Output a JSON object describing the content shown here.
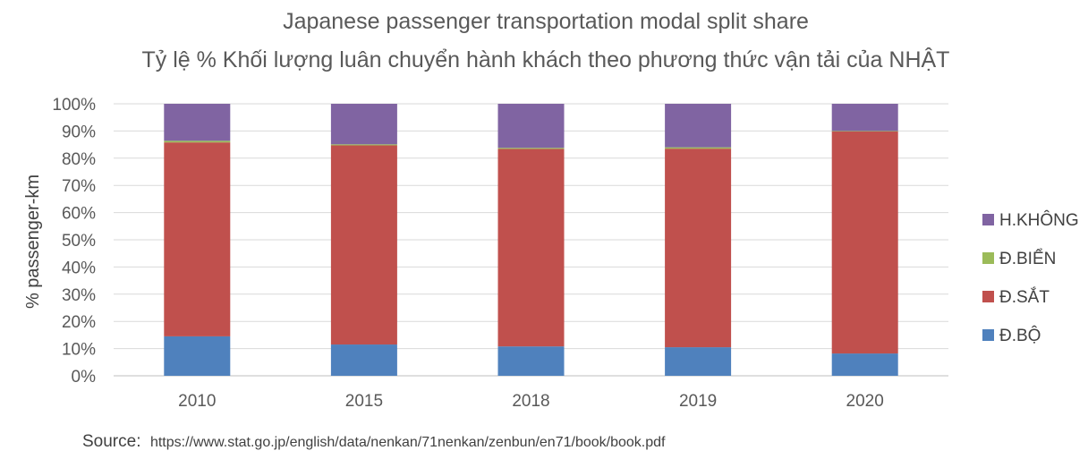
{
  "chart_data": {
    "type": "bar",
    "stacked": true,
    "title": "Japanese passenger transportation modal split share",
    "subtitle": "Tỷ lệ % Khối lượng luân chuyển hành khách theo phương thức vận tải của NHẬT",
    "xlabel": "",
    "ylabel": "% passenger-km",
    "ylim": [
      0,
      100
    ],
    "y_ticks": [
      "0%",
      "10%",
      "20%",
      "30%",
      "40%",
      "50%",
      "60%",
      "70%",
      "80%",
      "90%",
      "100%"
    ],
    "grid": true,
    "legend_position": "right",
    "categories": [
      "2010",
      "2015",
      "2018",
      "2019",
      "2020"
    ],
    "series": [
      {
        "name": "Đ.BỘ",
        "color": "#4F81BD",
        "values": [
          14.5,
          11.5,
          10.8,
          10.5,
          8.2
        ]
      },
      {
        "name": "Đ.SẮT",
        "color": "#C0504D",
        "values": [
          71.3,
          73.2,
          72.6,
          73.0,
          81.6
        ]
      },
      {
        "name": "Đ.BIỂN",
        "color": "#9BBB59",
        "values": [
          0.6,
          0.4,
          0.4,
          0.5,
          0.2
        ]
      },
      {
        "name": "H.KHÔNG",
        "color": "#8064A2",
        "values": [
          13.6,
          14.9,
          16.2,
          16.0,
          10.0
        ]
      }
    ],
    "legend_order": [
      "H.KHÔNG",
      "Đ.BIỂN",
      "Đ.SẮT",
      "Đ.BỘ"
    ]
  },
  "source": {
    "label": "Source:",
    "url": "https://www.stat.go.jp/english/data/nenkan/71nenkan/zenbun/en71/book/book.pdf"
  }
}
